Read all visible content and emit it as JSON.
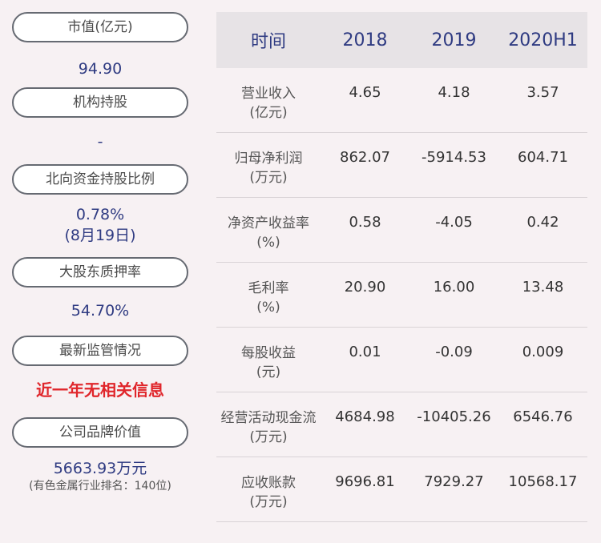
{
  "left": {
    "market_cap_label": "市值(亿元)",
    "market_cap_value": "94.90",
    "institution_label": "机构持股",
    "institution_value": "-",
    "northbound_label": "北向资金持股比例",
    "northbound_value": "0.78%",
    "northbound_date": "(8月19日)",
    "pledge_label": "大股东质押率",
    "pledge_value": "54.70%",
    "regulatory_label": "最新监管情况",
    "regulatory_value": "近一年无相关信息",
    "brand_label": "公司品牌价值",
    "brand_value": "5663.93万元",
    "brand_rank": "(有色金属行业排名：140位)"
  },
  "table": {
    "headers": [
      "时间",
      "2018",
      "2019",
      "2020H1"
    ],
    "rows": [
      {
        "label1": "营业收入",
        "label2": "(亿元)",
        "v": [
          "4.65",
          "4.18",
          "3.57"
        ]
      },
      {
        "label1": "归母净利润",
        "label2": "(万元)",
        "v": [
          "862.07",
          "-5914.53",
          "604.71"
        ]
      },
      {
        "label1": "净资产收益率",
        "label2": "(%)",
        "v": [
          "0.58",
          "-4.05",
          "0.42"
        ]
      },
      {
        "label1": "毛利率",
        "label2": "(%)",
        "v": [
          "20.90",
          "16.00",
          "13.48"
        ]
      },
      {
        "label1": "每股收益",
        "label2": "(元)",
        "v": [
          "0.01",
          "-0.09",
          "0.009"
        ]
      },
      {
        "label1": "经营活动现金流",
        "label2": "(万元)",
        "v": [
          "4684.98",
          "-10405.26",
          "6546.76"
        ]
      },
      {
        "label1": "应收账款",
        "label2": "(万元)",
        "v": [
          "9696.81",
          "7929.27",
          "10568.17"
        ]
      }
    ]
  }
}
